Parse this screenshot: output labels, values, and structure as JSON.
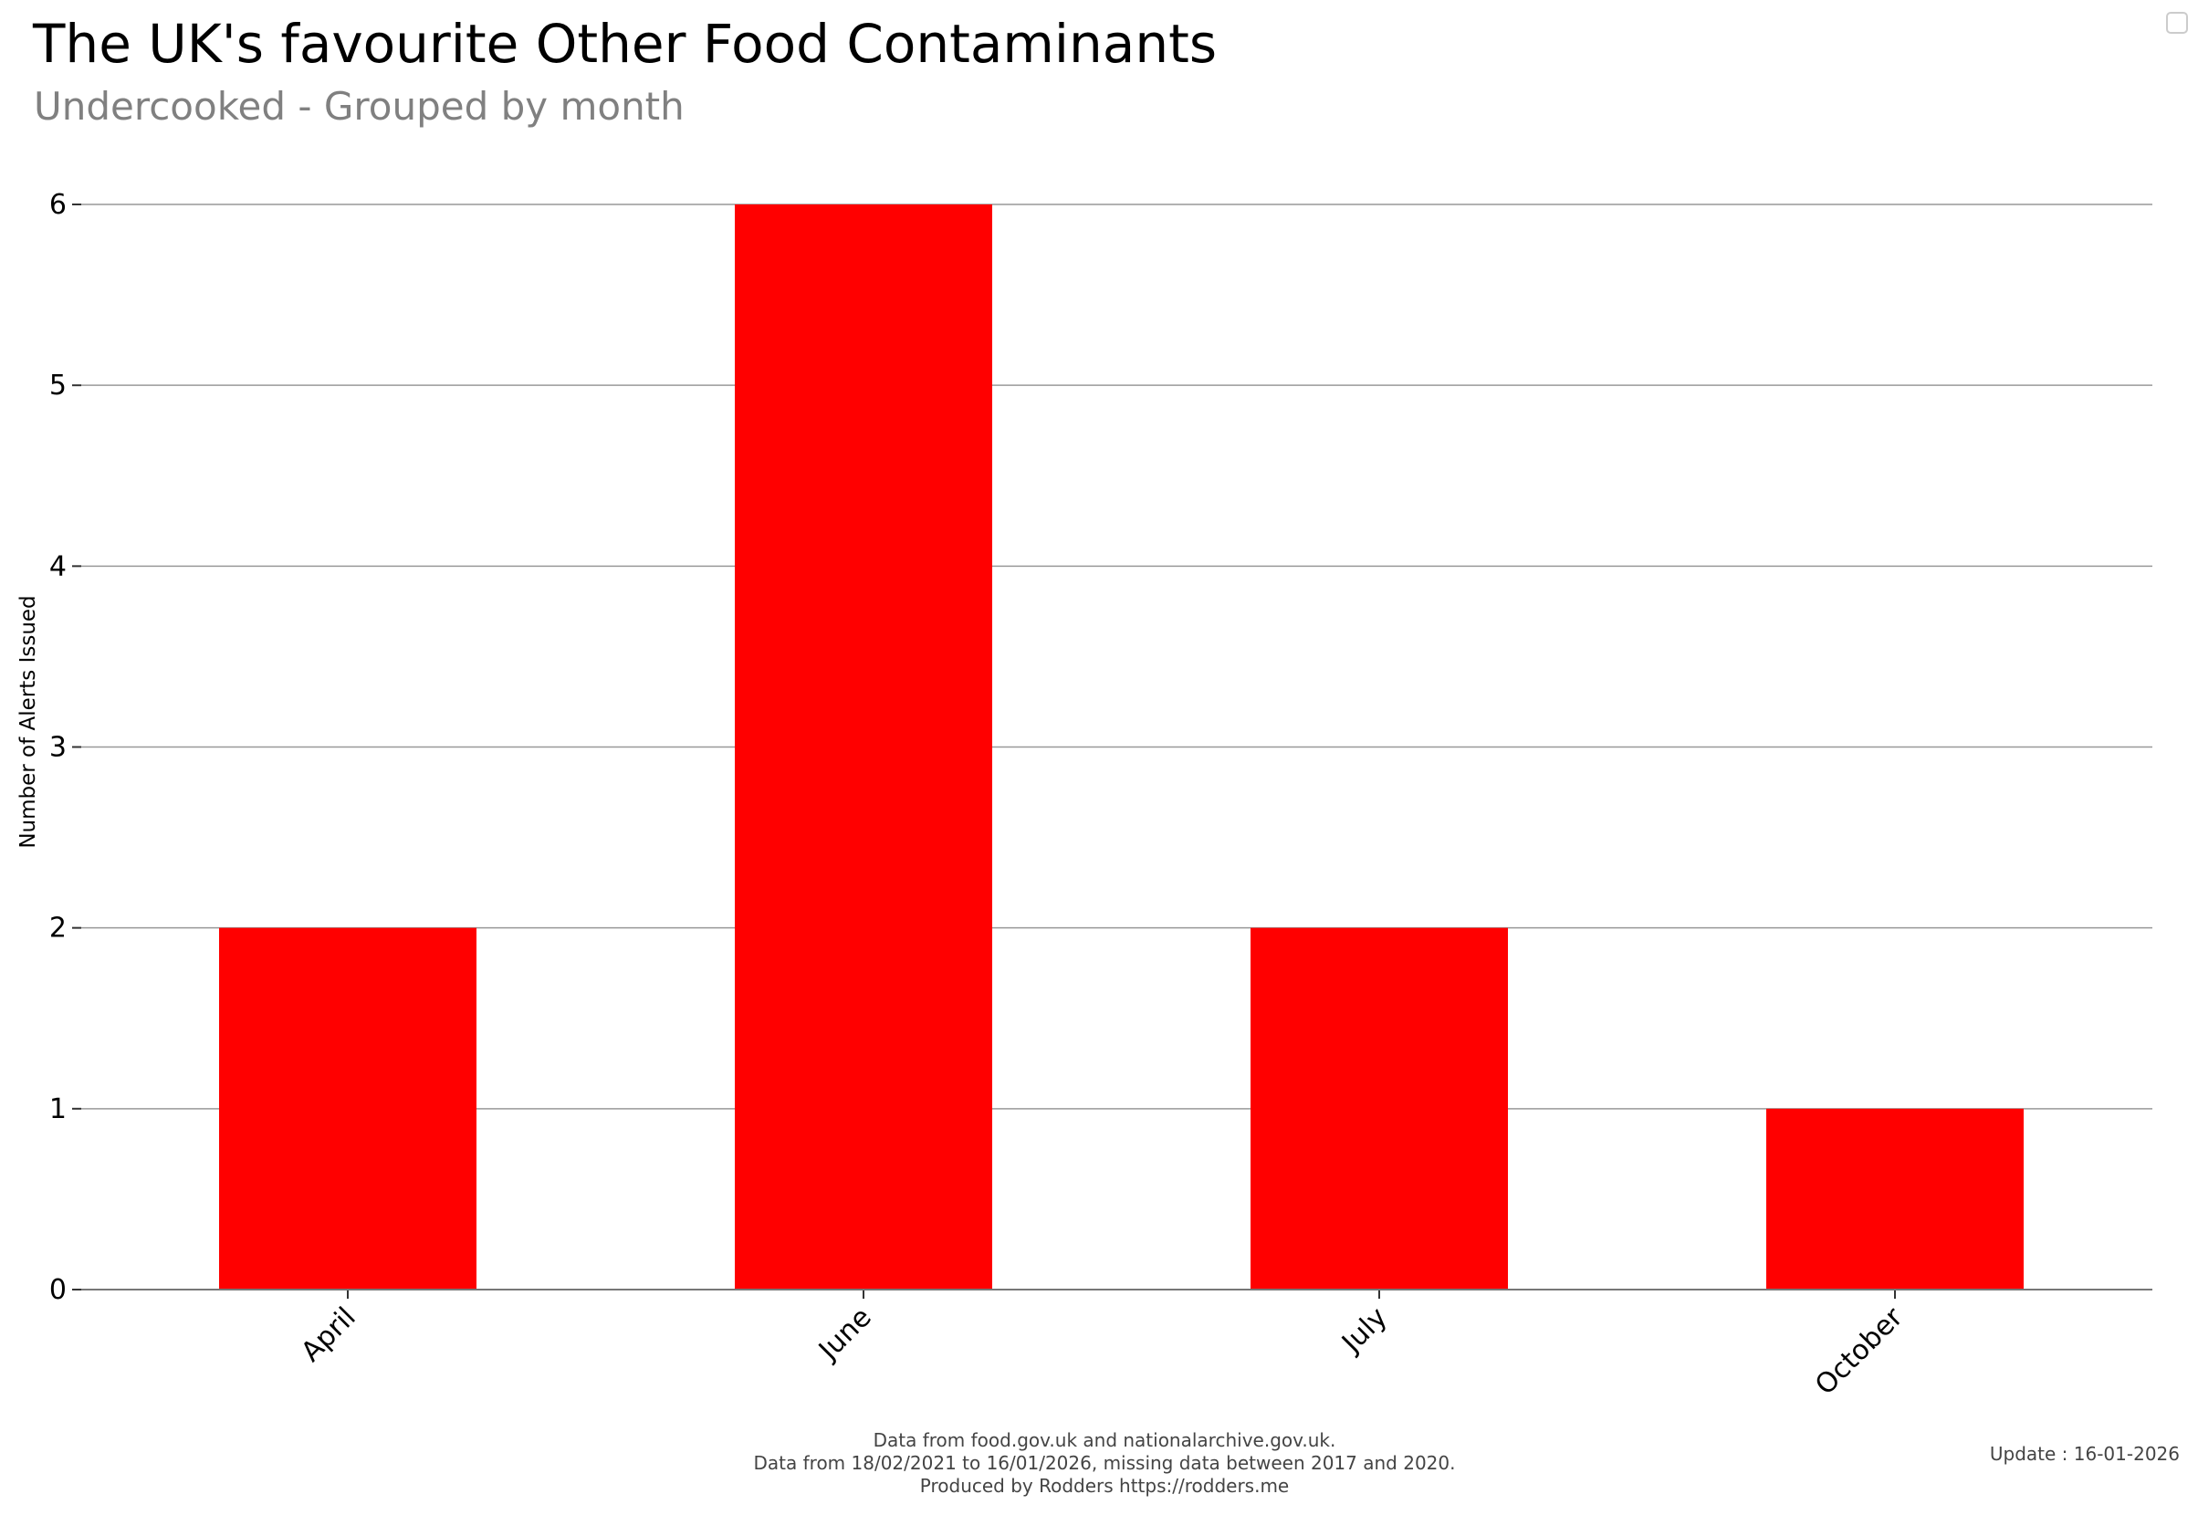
{
  "chart_data": {
    "type": "bar",
    "title": "The UK's favourite Other Food Contaminants",
    "subtitle": "Undercooked - Grouped by month",
    "categories": [
      "April",
      "June",
      "July",
      "October"
    ],
    "values": [
      2,
      6,
      2,
      1
    ],
    "xlabel": "",
    "ylabel": "Number of Alerts Issued",
    "ylim": [
      0,
      6
    ],
    "yticks": [
      0,
      1,
      2,
      3,
      4,
      5,
      6
    ],
    "grid": true,
    "bar_color": "#ff0000"
  },
  "footer": {
    "line1": "Data from food.gov.uk and nationalarchive.gov.uk.",
    "line2": "Data from 18/02/2021 to 16/01/2026, missing data between 2017 and 2020.",
    "line3": "Produced by Rodders https://rodders.me",
    "update": "Update : 16-01-2026"
  }
}
